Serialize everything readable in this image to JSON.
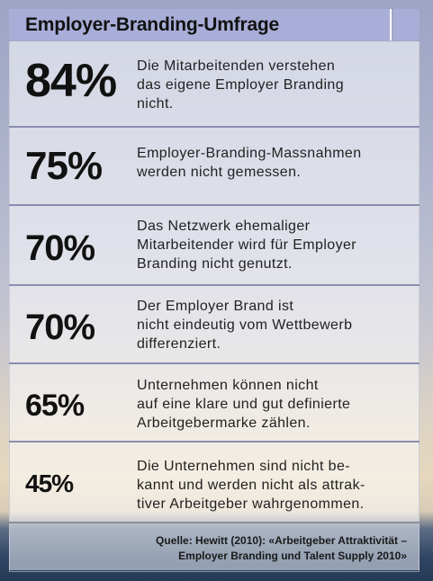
{
  "header": {
    "title": "Employer-Branding-Umfrage"
  },
  "rows": [
    {
      "percent": "84%",
      "lines": [
        "Die Mitarbeitenden verstehen",
        "das eigene Employer Branding",
        "nicht."
      ]
    },
    {
      "percent": "75%",
      "lines": [
        "Employer-Branding-Massnahmen",
        "werden nicht gemessen."
      ]
    },
    {
      "percent": "70%",
      "lines": [
        "Das Netzwerk ehemaliger",
        "Mitarbeitender wird für Employer",
        "Branding nicht genutzt."
      ]
    },
    {
      "percent": "70%",
      "lines": [
        "Der Employer Brand ist",
        "nicht eindeutig vom Wettbewerb",
        "differenziert."
      ]
    },
    {
      "percent": "65%",
      "lines": [
        "Unternehmen können nicht",
        "auf eine klare und gut definierte",
        "Arbeitgebermarke zählen."
      ]
    },
    {
      "percent": "45%",
      "lines": [
        "Die Unternehmen sind nicht be-",
        "kannt und werden nicht als attrak-",
        "tiver Arbeitgeber wahrgenommen."
      ]
    }
  ],
  "source": {
    "line1": "Quelle: Hewitt (2010): «Arbeitgeber Attraktivität –",
    "line2": "Employer Branding und Talent Supply 2010»"
  }
}
